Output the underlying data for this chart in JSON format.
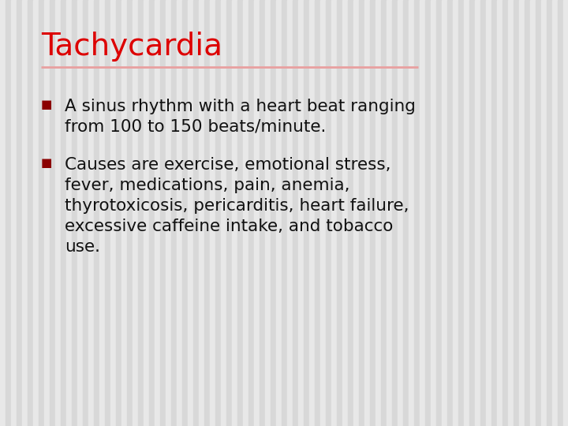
{
  "title": "Tachycardia",
  "title_color": "#dd0000",
  "title_fontsize": 28,
  "separator_color": "#e8a0a0",
  "separator_linewidth": 2.0,
  "bullet_color": "#8b0000",
  "body_color": "#111111",
  "body_fontsize": 15.5,
  "background_color": "#e4e4e4",
  "stripe_light": "#e8e8e8",
  "stripe_dark": "#d8d8d8",
  "bullet1_lines": [
    "A sinus rhythm with a heart beat ranging",
    "from 100 to 150 beats/minute."
  ],
  "bullet2_lines": [
    "Causes are exercise, emotional stress,",
    "fever, medications, pain, anemia,",
    "thyrotoxicosis, pericarditis, heart failure,",
    "excessive caffeine intake, and tobacco",
    "use."
  ],
  "font_family": "DejaVu Sans"
}
